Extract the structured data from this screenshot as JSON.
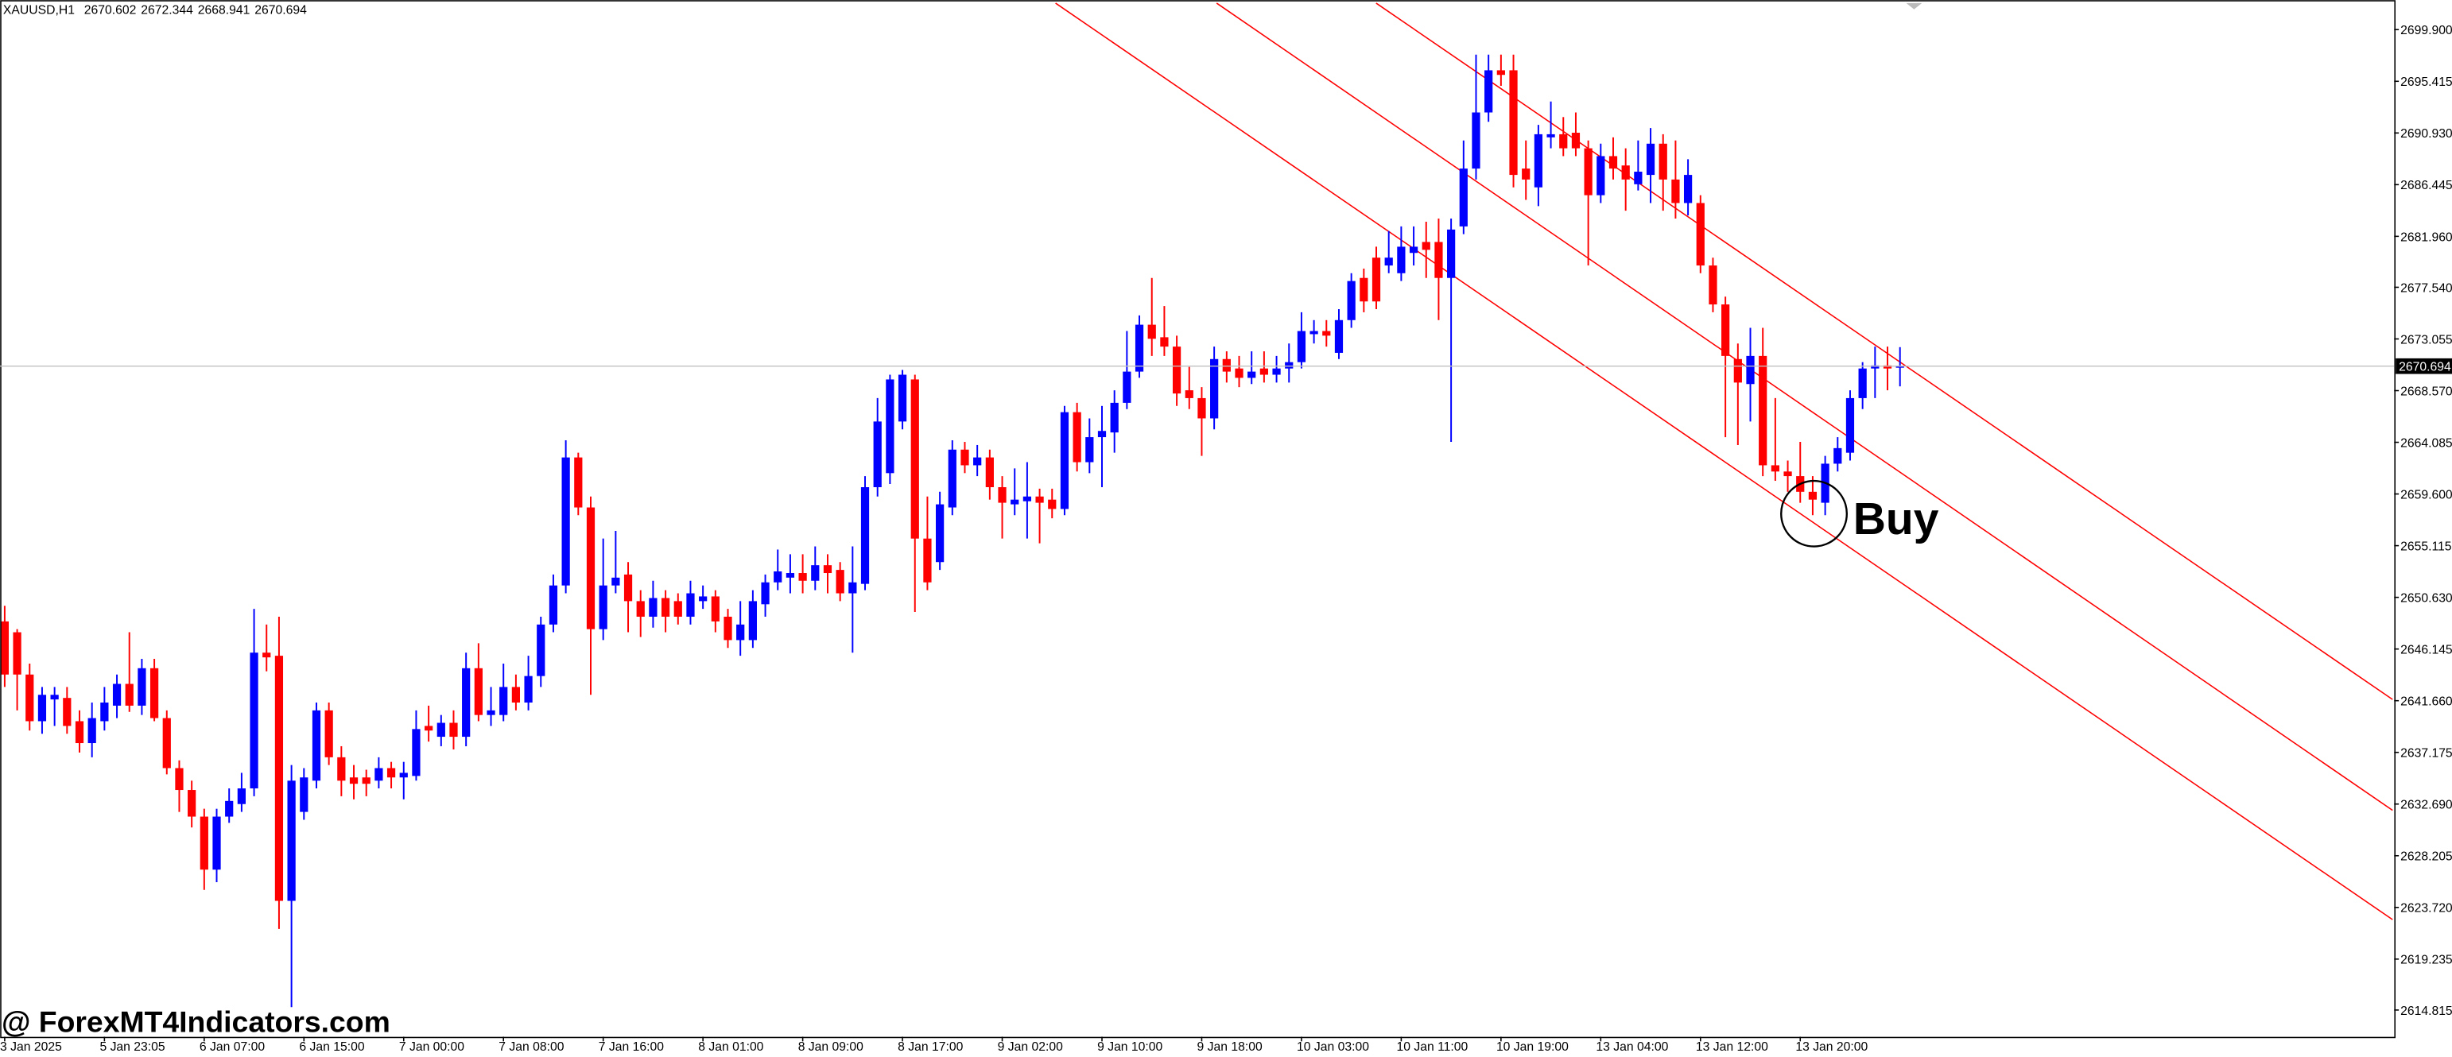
{
  "chart_data": {
    "type": "candlestick",
    "title": "XAUUSD,H1",
    "categories": [
      "3 Jan 2025",
      null,
      null,
      null,
      null,
      null,
      null,
      null,
      "5 Jan 23:05",
      null,
      null,
      null,
      null,
      null,
      null,
      null,
      "6 Jan 07:00",
      null,
      null,
      null,
      null,
      null,
      null,
      null,
      "6 Jan 15:00",
      null,
      null,
      null,
      null,
      null,
      null,
      null,
      "7 Jan 00:00",
      null,
      null,
      null,
      null,
      null,
      null,
      null,
      "7 Jan 08:00",
      null,
      null,
      null,
      null,
      null,
      null,
      null,
      "7 Jan 16:00",
      null,
      null,
      null,
      null,
      null,
      null,
      null,
      "8 Jan 01:00",
      null,
      null,
      null,
      null,
      null,
      null,
      null,
      "8 Jan 09:00",
      null,
      null,
      null,
      null,
      null,
      null,
      null,
      "8 Jan 17:00",
      null,
      null,
      null,
      null,
      null,
      null,
      null,
      "9 Jan 02:00",
      null,
      null,
      null,
      null,
      null,
      null,
      null,
      "9 Jan 10:00",
      null,
      null,
      null,
      null,
      null,
      null,
      null,
      "9 Jan 18:00",
      null,
      null,
      null,
      null,
      null,
      null,
      null,
      "10 Jan 03:00",
      null,
      null,
      null,
      null,
      null,
      null,
      null,
      "10 Jan 11:00",
      null,
      null,
      null,
      null,
      null,
      null,
      null,
      "10 Jan 19:00",
      null,
      null,
      null,
      null,
      null,
      null,
      null,
      "13 Jan 04:00",
      null,
      null,
      null,
      null,
      null,
      null,
      null,
      "13 Jan 12:00",
      null,
      null,
      null,
      null,
      null,
      null,
      null,
      "13 Jan 20:00",
      null,
      null,
      null,
      null,
      null,
      null,
      null,
      null
    ],
    "open": [
      2648.54,
      2647.6,
      2643.93,
      2639.88,
      2641.77,
      2641.9,
      2639.88,
      2637.98,
      2639.88,
      2641.23,
      2643.12,
      2641.23,
      2644.48,
      2640.15,
      2635.81,
      2633.91,
      2631.6,
      2627.0,
      2631.6,
      2632.69,
      2634.05,
      2645.83,
      2645.56,
      2624.29,
      2632.01,
      2634.72,
      2640.82,
      2636.75,
      2635.0,
      2635.0,
      2634.72,
      2635.81,
      2635.0,
      2635.13,
      2639.47,
      2638.53,
      2639.74,
      2638.53,
      2644.48,
      2640.42,
      2640.42,
      2642.85,
      2641.5,
      2643.8,
      2648.27,
      2651.66,
      2662.77,
      2658.43,
      2647.87,
      2651.66,
      2652.61,
      2650.3,
      2648.95,
      2650.57,
      2650.3,
      2648.95,
      2650.3,
      2650.71,
      2648.95,
      2646.92,
      2646.92,
      2650.03,
      2651.93,
      2652.34,
      2652.74,
      2652.07,
      2653.42,
      2653.01,
      2650.98,
      2651.8,
      2660.19,
      2661.41,
      2665.89,
      2669.54,
      2655.73,
      2653.69,
      2658.43,
      2663.45,
      2662.09,
      2662.77,
      2660.19,
      2658.7,
      2658.97,
      2659.38,
      2659.11,
      2658.3,
      2666.7,
      2662.36,
      2664.53,
      2664.94,
      2667.51,
      2670.22,
      2674.29,
      2673.2,
      2672.39,
      2668.6,
      2667.92,
      2666.16,
      2671.31,
      2670.49,
      2669.68,
      2670.49,
      2669.95,
      2670.49,
      2671.04,
      2673.47,
      2673.74,
      2671.85,
      2674.69,
      2678.35,
      2680.11,
      2679.43,
      2678.76,
      2680.52,
      2681.47,
      2681.47,
      2678.35,
      2682.82,
      2687.84,
      2692.71,
      2696.37,
      2696.37,
      2687.84,
      2686.21,
      2690.55,
      2690.82,
      2690.95,
      2689.6,
      2685.53,
      2688.92,
      2688.11,
      2686.48,
      2687.29,
      2690.0,
      2686.89,
      2684.85,
      2684.85,
      2679.43,
      2676.05,
      2671.31,
      2669.14,
      2671.58,
      2662.09,
      2661.55,
      2661.15,
      2659.79,
      2658.84,
      2662.23,
      2663.18,
      2667.92,
      2670.49,
      2670.76,
      2670.602
    ],
    "high": [
      2649.9,
      2647.87,
      2644.88,
      2642.85,
      2642.85,
      2642.85,
      2640.82,
      2641.5,
      2642.85,
      2643.93,
      2647.6,
      2645.29,
      2645.29,
      2640.82,
      2636.48,
      2634.72,
      2632.28,
      2632.28,
      2634.05,
      2635.4,
      2649.63,
      2648.27,
      2648.95,
      2636.08,
      2635.81,
      2641.5,
      2641.5,
      2637.71,
      2636.08,
      2635.67,
      2636.75,
      2636.35,
      2636.35,
      2640.82,
      2641.23,
      2640.42,
      2640.82,
      2645.83,
      2646.65,
      2642.85,
      2644.88,
      2643.93,
      2645.56,
      2648.95,
      2652.61,
      2664.26,
      2663.18,
      2659.38,
      2655.73,
      2656.4,
      2653.69,
      2651.25,
      2652.07,
      2651.25,
      2650.98,
      2652.07,
      2651.66,
      2651.25,
      2649.63,
      2650.3,
      2651.25,
      2652.61,
      2654.78,
      2654.37,
      2654.37,
      2655.05,
      2654.37,
      2653.69,
      2655.05,
      2661.15,
      2667.92,
      2669.95,
      2670.36,
      2669.95,
      2659.38,
      2659.79,
      2664.26,
      2664.12,
      2663.85,
      2663.45,
      2661.15,
      2661.82,
      2662.36,
      2660.06,
      2660.06,
      2667.24,
      2667.51,
      2666.16,
      2667.24,
      2668.6,
      2673.74,
      2675.1,
      2678.35,
      2675.91,
      2673.34,
      2670.63,
      2668.87,
      2672.39,
      2671.98,
      2671.58,
      2671.98,
      2671.98,
      2671.58,
      2672.66,
      2675.37,
      2674.69,
      2674.69,
      2675.64,
      2678.76,
      2679.16,
      2681.06,
      2682.42,
      2682.82,
      2682.82,
      2683.23,
      2683.5,
      2683.5,
      2690.28,
      2697.73,
      2697.73,
      2697.73,
      2697.73,
      2690.28,
      2691.63,
      2693.66,
      2692.31,
      2692.71,
      2690.28,
      2690.0,
      2690.55,
      2689.6,
      2690.28,
      2691.36,
      2690.82,
      2690.28,
      2688.65,
      2685.53,
      2680.11,
      2676.73,
      2672.66,
      2674.02,
      2674.02,
      2667.92,
      2662.5,
      2664.12,
      2661.15,
      2662.91,
      2664.53,
      2668.6,
      2671.04,
      2672.39,
      2672.39,
      2672.344
    ],
    "low": [
      2642.85,
      2640.82,
      2639.07,
      2638.79,
      2639.47,
      2638.79,
      2637.16,
      2636.75,
      2639.07,
      2640.15,
      2640.69,
      2640.42,
      2639.88,
      2635.27,
      2632.01,
      2630.66,
      2625.24,
      2625.91,
      2631.06,
      2632.01,
      2633.37,
      2644.21,
      2621.85,
      2615.07,
      2631.33,
      2634.05,
      2636.08,
      2633.37,
      2633.1,
      2633.37,
      2634.05,
      2634.05,
      2633.1,
      2634.72,
      2638.11,
      2637.71,
      2637.43,
      2637.71,
      2639.88,
      2639.47,
      2639.88,
      2640.82,
      2640.82,
      2642.85,
      2647.6,
      2650.98,
      2657.76,
      2642.17,
      2646.92,
      2650.98,
      2647.6,
      2647.19,
      2648.0,
      2647.6,
      2648.27,
      2648.27,
      2649.63,
      2647.6,
      2646.24,
      2645.56,
      2646.24,
      2648.95,
      2651.25,
      2650.98,
      2650.98,
      2651.25,
      2650.98,
      2650.3,
      2645.83,
      2651.25,
      2659.38,
      2660.47,
      2665.21,
      2649.36,
      2651.25,
      2653.01,
      2657.76,
      2661.41,
      2661.15,
      2659.11,
      2655.73,
      2657.76,
      2655.73,
      2655.32,
      2657.49,
      2657.76,
      2661.55,
      2661.41,
      2660.19,
      2663.18,
      2666.97,
      2669.68,
      2671.58,
      2671.58,
      2667.24,
      2666.97,
      2662.91,
      2665.21,
      2669.27,
      2668.87,
      2669.14,
      2669.27,
      2669.27,
      2669.27,
      2670.49,
      2672.66,
      2672.39,
      2671.31,
      2674.02,
      2675.37,
      2675.64,
      2678.76,
      2678.08,
      2679.43,
      2678.35,
      2674.69,
      2664.12,
      2682.15,
      2686.89,
      2691.9,
      2695.02,
      2686.21,
      2685.12,
      2684.58,
      2689.6,
      2688.92,
      2688.92,
      2679.43,
      2684.85,
      2686.89,
      2684.18,
      2685.94,
      2684.85,
      2684.18,
      2683.5,
      2683.77,
      2678.76,
      2675.37,
      2664.53,
      2663.85,
      2665.89,
      2661.15,
      2660.74,
      2659.79,
      2658.84,
      2657.76,
      2657.76,
      2661.55,
      2662.5,
      2666.97,
      2667.92,
      2668.6,
      2668.941
    ],
    "close": [
      2643.93,
      2643.93,
      2639.88,
      2642.17,
      2642.17,
      2639.47,
      2637.98,
      2640.15,
      2641.5,
      2643.12,
      2641.23,
      2644.48,
      2640.15,
      2635.81,
      2633.91,
      2631.6,
      2627.0,
      2631.6,
      2632.96,
      2634.05,
      2645.83,
      2645.42,
      2624.29,
      2634.72,
      2635.0,
      2640.82,
      2636.75,
      2634.72,
      2634.45,
      2634.45,
      2635.81,
      2635.0,
      2635.4,
      2639.2,
      2639.07,
      2639.74,
      2638.53,
      2644.48,
      2640.42,
      2640.82,
      2642.85,
      2641.5,
      2643.8,
      2648.27,
      2651.66,
      2662.77,
      2658.43,
      2647.87,
      2651.66,
      2652.34,
      2650.3,
      2648.95,
      2650.57,
      2648.95,
      2648.95,
      2650.98,
      2650.71,
      2648.54,
      2646.92,
      2648.27,
      2650.3,
      2651.93,
      2652.88,
      2652.74,
      2652.07,
      2653.42,
      2652.74,
      2650.98,
      2651.93,
      2660.19,
      2665.89,
      2669.54,
      2669.95,
      2655.73,
      2651.93,
      2658.7,
      2663.45,
      2662.09,
      2662.77,
      2660.19,
      2658.84,
      2659.11,
      2659.38,
      2658.84,
      2658.3,
      2666.7,
      2662.36,
      2664.53,
      2665.07,
      2667.51,
      2670.22,
      2674.29,
      2673.07,
      2672.39,
      2668.32,
      2667.92,
      2666.16,
      2671.31,
      2670.22,
      2669.68,
      2670.22,
      2669.95,
      2670.49,
      2671.04,
      2673.74,
      2673.74,
      2673.34,
      2674.69,
      2678.08,
      2676.31,
      2676.31,
      2680.11,
      2681.06,
      2681.06,
      2680.79,
      2678.35,
      2682.55,
      2687.84,
      2692.71,
      2696.37,
      2695.97,
      2687.29,
      2686.89,
      2690.82,
      2690.82,
      2689.6,
      2689.6,
      2685.53,
      2688.92,
      2687.84,
      2686.89,
      2687.57,
      2690.0,
      2686.89,
      2684.85,
      2687.29,
      2679.43,
      2676.05,
      2671.58,
      2669.27,
      2671.58,
      2662.09,
      2661.55,
      2661.15,
      2659.79,
      2659.11,
      2662.23,
      2663.58,
      2667.92,
      2670.49,
      2670.76,
      2670.49,
      2670.694
    ],
    "up_color": "#0000ff",
    "down_color": "#ff0000",
    "ylim": [
      2612.5,
      2702.47
    ],
    "yticks": [
      {
        "value": 2699.9,
        "label": "2699.900"
      },
      2695.415,
      {
        "value": 2690.93,
        "label": "2690.930"
      },
      2686.445,
      {
        "value": 2681.96,
        "label": "2681.960"
      },
      {
        "value": 2677.54,
        "label": "2677.540"
      },
      2673.055,
      {
        "value": 2668.57,
        "label": "2668.570"
      },
      2664.085,
      {
        "value": 2659.6,
        "label": "2659.600"
      },
      2655.115,
      {
        "value": 2650.63,
        "label": "2650.630"
      },
      2646.145,
      {
        "value": 2641.66,
        "label": "2641.660"
      },
      2637.175,
      {
        "value": 2632.69,
        "label": "2632.690"
      },
      2628.205,
      {
        "value": 2623.72,
        "label": "2623.720"
      },
      2619.235,
      2614.815
    ],
    "annotation": "Buy",
    "watermark": "@ ForexMT4Indicators.com"
  }
}
